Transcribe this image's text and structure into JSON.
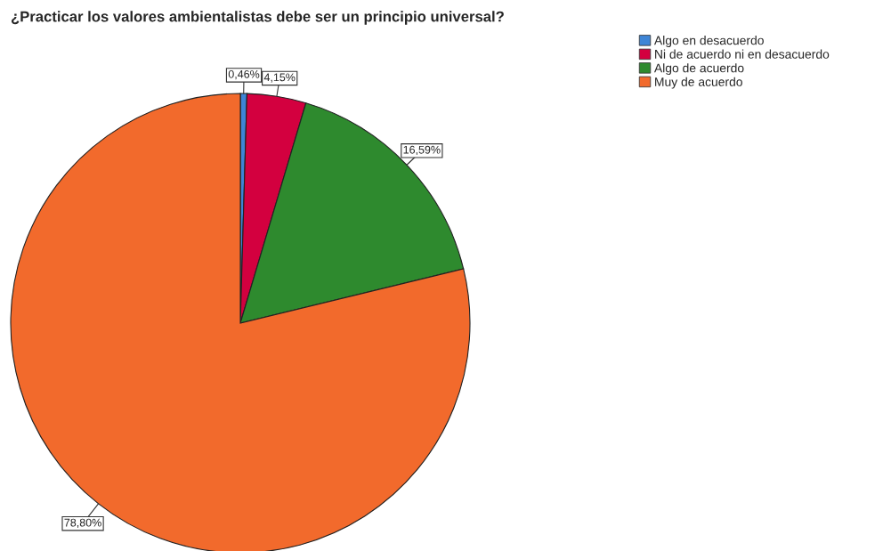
{
  "chart_data": {
    "type": "pie",
    "title": "¿Practicar los valores ambientalistas debe ser un principio universal?",
    "categories": [
      "Algo en desacuerdo",
      "Ni de acuerdo ni en desacuerdo",
      "Algo de acuerdo",
      "Muy de acuerdo"
    ],
    "values": [
      0.46,
      4.15,
      16.59,
      78.8
    ],
    "colors": [
      "#3e85d6",
      "#d3003f",
      "#2e8a2e",
      "#f26a2c"
    ],
    "value_labels": [
      "0,46%",
      "4,15%",
      "16,59%",
      "78,80%"
    ],
    "legend": "top right"
  }
}
